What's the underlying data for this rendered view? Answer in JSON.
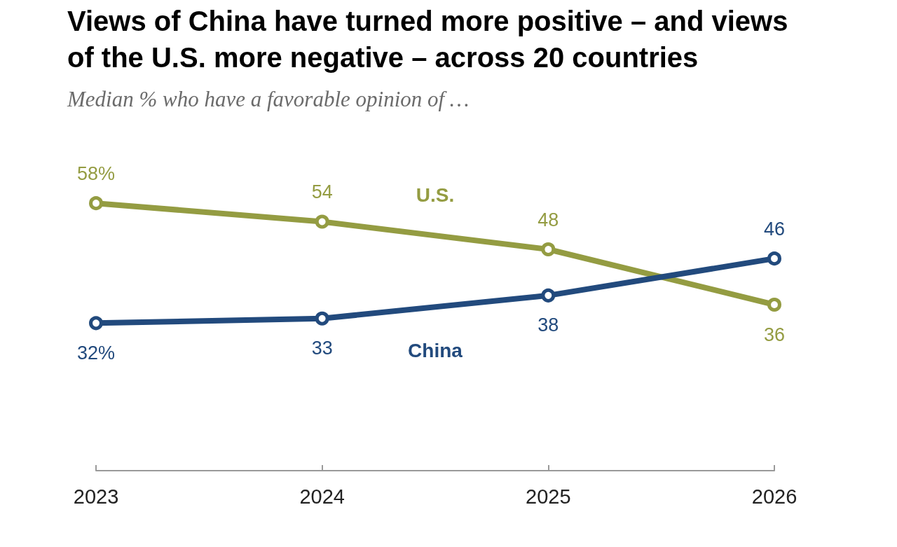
{
  "chart_data": {
    "type": "line",
    "title": "Views of China have turned more positive – and views of the U.S. more negative – across 20 countries",
    "subtitle": "Median % who have a favorable opinion of …",
    "categories": [
      "2023",
      "2024",
      "2025",
      "2026"
    ],
    "series": [
      {
        "name": "U.S.",
        "color": "#949c42",
        "values": [
          58,
          54,
          48,
          36
        ],
        "value_labels": [
          "58%",
          "54",
          "48",
          "36"
        ]
      },
      {
        "name": "China",
        "color": "#224a7d",
        "values": [
          32,
          33,
          38,
          46
        ],
        "value_labels": [
          "32%",
          "33",
          "38",
          "46"
        ]
      }
    ],
    "tick_labels": "x",
    "marker": "circle",
    "legend": false
  }
}
